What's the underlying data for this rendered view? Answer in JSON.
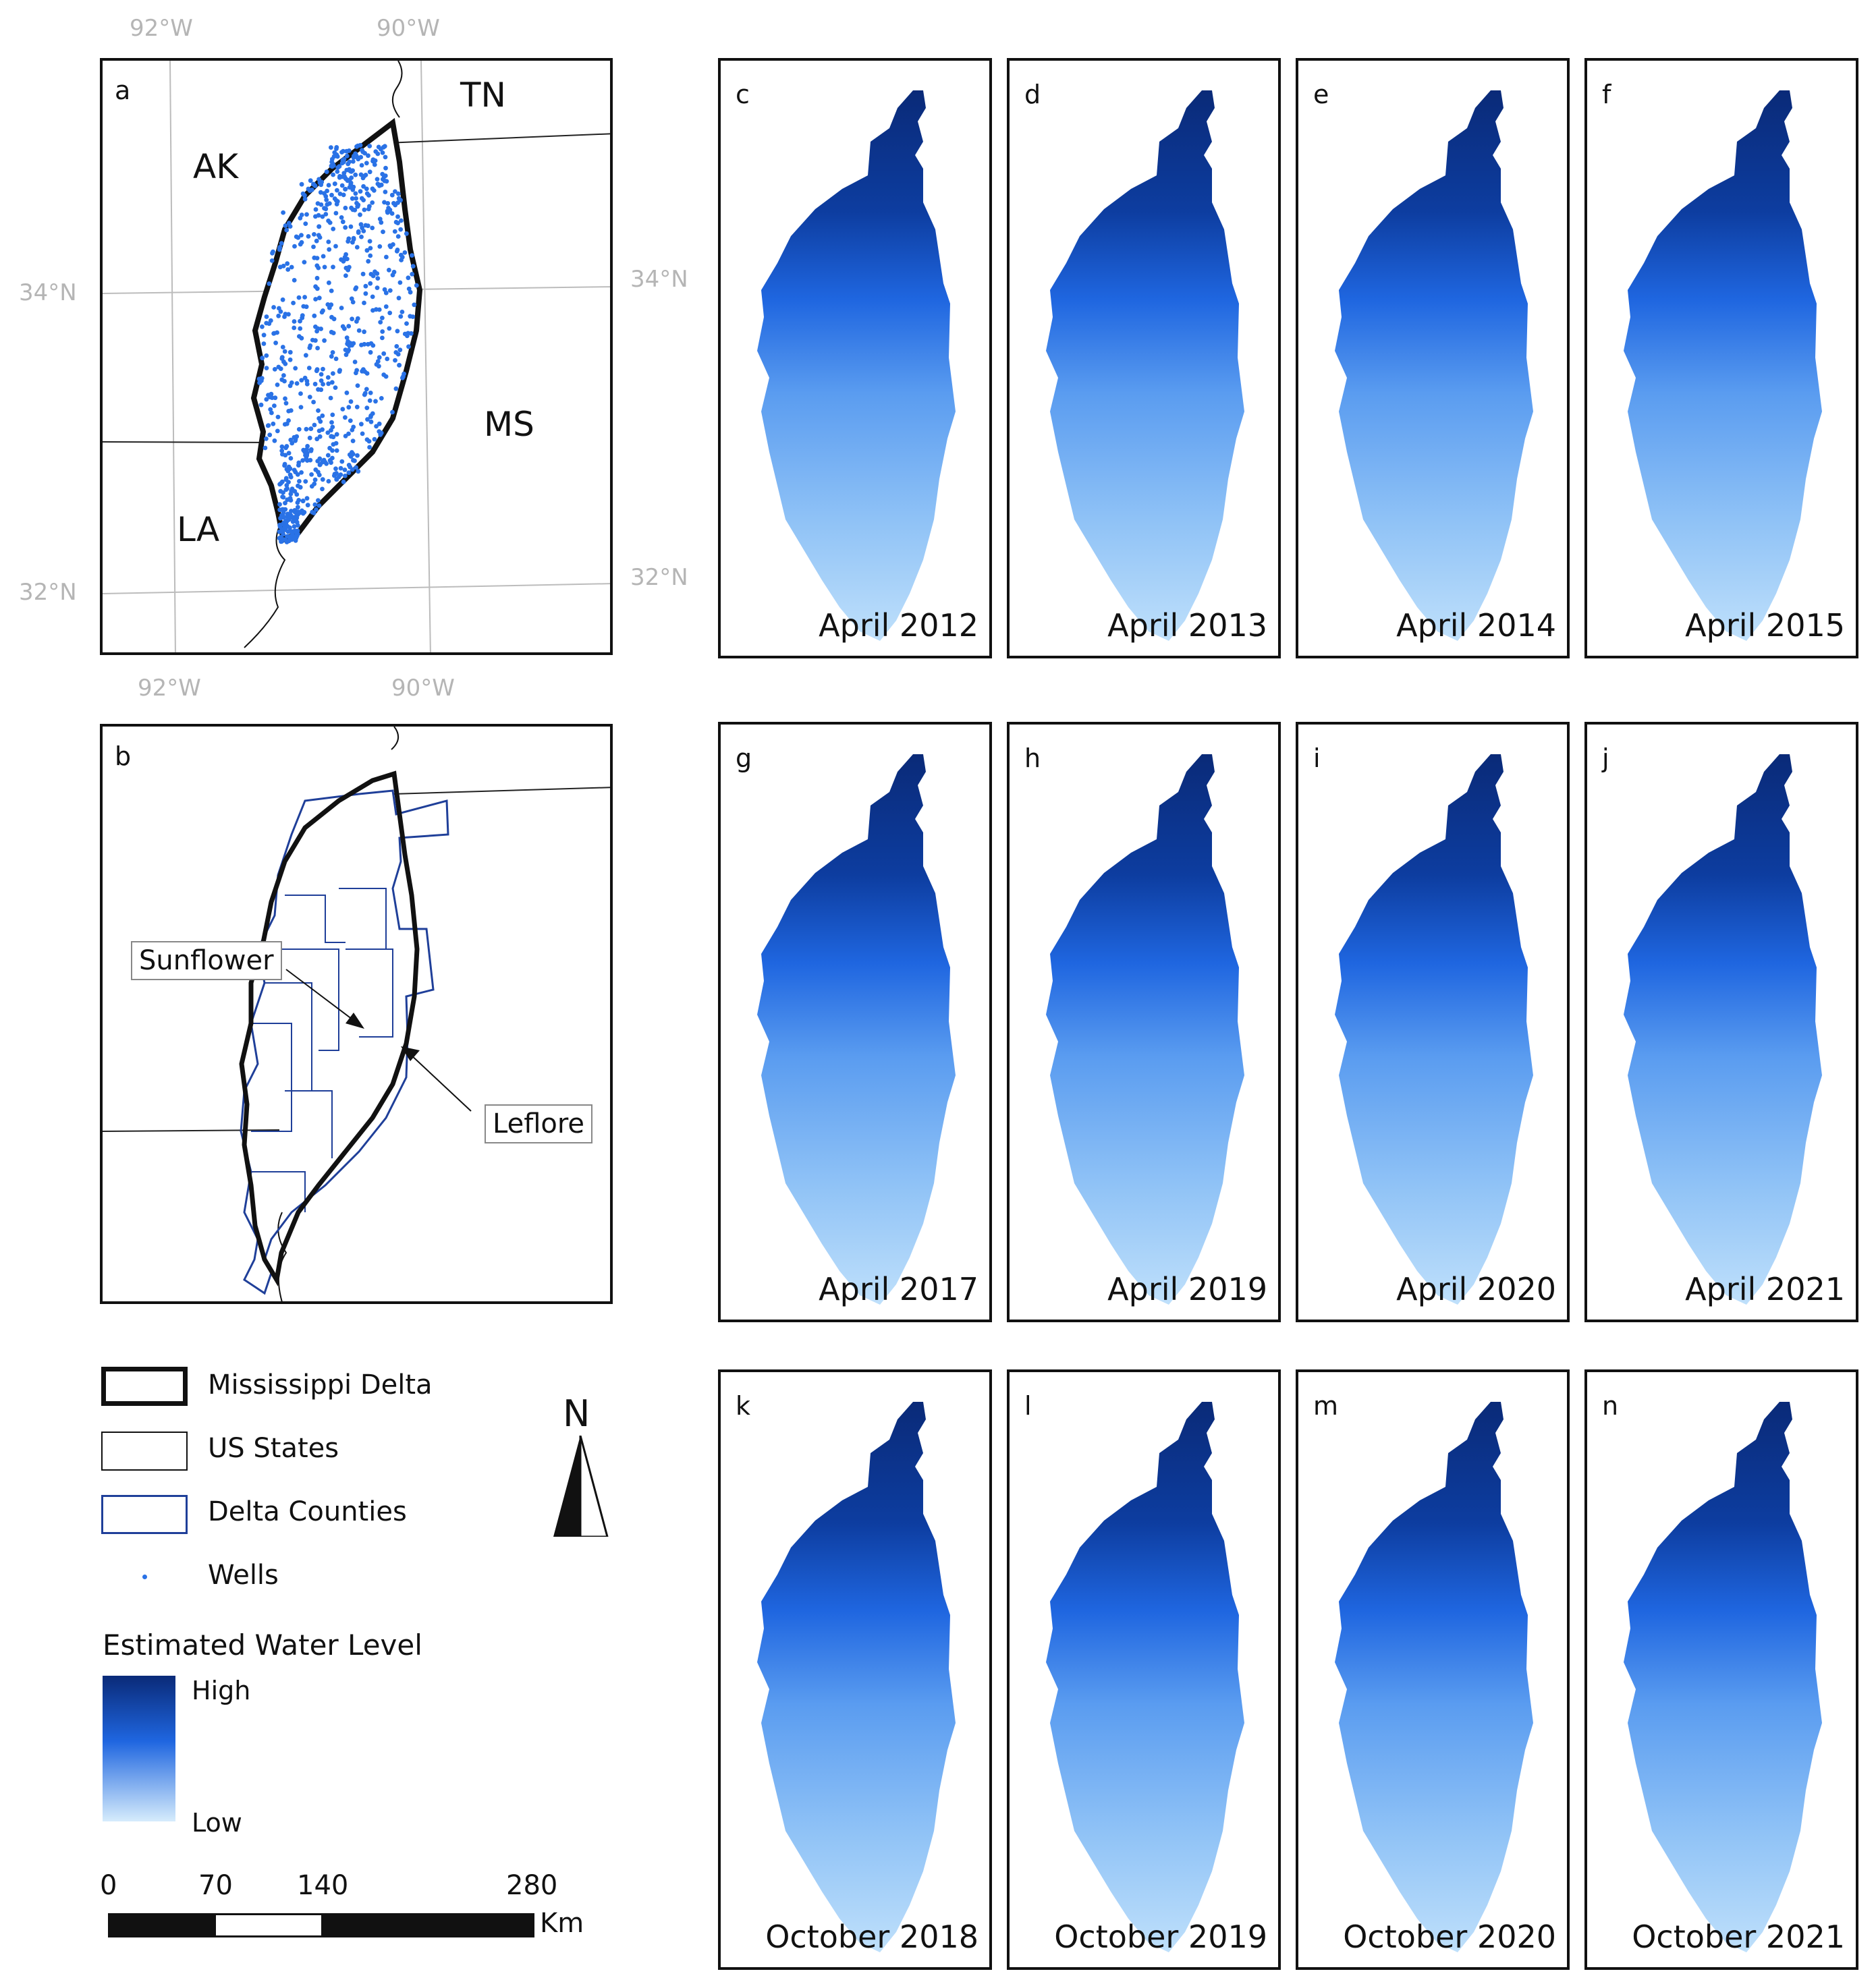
{
  "panel_a": {
    "label": "a",
    "coords": {
      "top_92w": "92°W",
      "top_90w": "90°W",
      "bottom_92w": "92°W",
      "bottom_90w": "90°W",
      "left_34n": "34°N",
      "left_32n": "32°N",
      "right_34n": "34°N",
      "right_32n": "32°N"
    },
    "states": {
      "ak": "AK",
      "tn": "TN",
      "ms": "MS",
      "la": "LA"
    }
  },
  "panel_b": {
    "label": "b",
    "callouts": {
      "sunflower": "Sunflower",
      "leflore": "Leflore"
    }
  },
  "water_maps": [
    {
      "label": "c",
      "date": "April 2012"
    },
    {
      "label": "d",
      "date": "April 2013"
    },
    {
      "label": "e",
      "date": "April 2014"
    },
    {
      "label": "f",
      "date": "April 2015"
    },
    {
      "label": "g",
      "date": "April 2017"
    },
    {
      "label": "h",
      "date": "April 2019"
    },
    {
      "label": "i",
      "date": "April 2020"
    },
    {
      "label": "j",
      "date": "April 2021"
    },
    {
      "label": "k",
      "date": "October 2018"
    },
    {
      "label": "l",
      "date": "October 2019"
    },
    {
      "label": "m",
      "date": "October 2020"
    },
    {
      "label": "n",
      "date": "October 2021"
    }
  ],
  "legend": {
    "delta": "Mississippi Delta",
    "states": "US States",
    "counties": "Delta Counties",
    "wells": "Wells",
    "water_title": "Estimated Water Level",
    "high": "High",
    "low": "Low"
  },
  "north_arrow": "N",
  "scale_bar": {
    "ticks": [
      "0",
      "70",
      "140",
      "280"
    ],
    "unit": "Km"
  },
  "colors": {
    "high": "#0a2a78",
    "mid": "#1f66e0",
    "low": "#cfe8fb",
    "well_dot": "#2a72e6",
    "county_line": "#1f3f99"
  }
}
